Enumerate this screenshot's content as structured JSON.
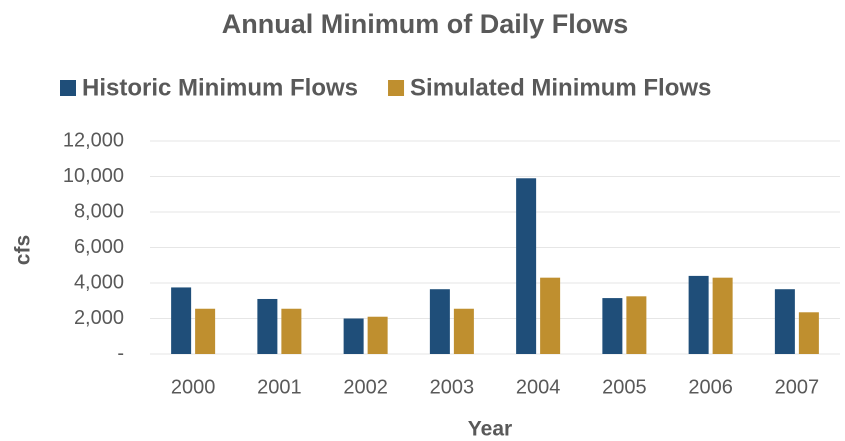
{
  "chart_data": {
    "type": "bar",
    "title": "Annual Minimum of Daily Flows",
    "x_label": "Year",
    "y_label": "cfs",
    "categories": [
      "2000",
      "2001",
      "2002",
      "2003",
      "2004",
      "2005",
      "2006",
      "2007"
    ],
    "series": [
      {
        "name": "Historic Minimum Flows",
        "color": "#1f4e79",
        "values": [
          3750,
          3100,
          2000,
          3650,
          9900,
          3150,
          4400,
          3650
        ]
      },
      {
        "name": "Simulated Minimum Flows",
        "color": "#bf8f2f",
        "values": [
          2550,
          2550,
          2100,
          2550,
          4300,
          3250,
          4300,
          2350
        ]
      }
    ],
    "ylim": [
      0,
      12000
    ],
    "yticks": [
      {
        "value": 0,
        "label": "-"
      },
      {
        "value": 2000,
        "label": "2,000"
      },
      {
        "value": 4000,
        "label": "4,000"
      },
      {
        "value": 6000,
        "label": "6,000"
      },
      {
        "value": 8000,
        "label": "8,000"
      },
      {
        "value": 10000,
        "label": "10,000"
      },
      {
        "value": 12000,
        "label": "12,000"
      }
    ],
    "grid": true,
    "legend": "top"
  }
}
